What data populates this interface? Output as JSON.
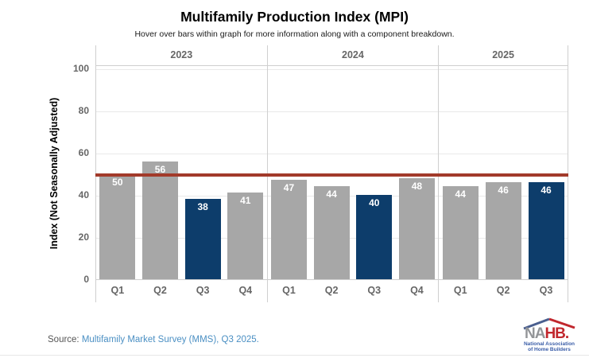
{
  "page": {
    "title": "Multifamily Production Index (MPI)",
    "subtitle": "Hover over bars within graph for more information along with a component breakdown."
  },
  "chart_data": {
    "type": "bar",
    "title": "Multifamily Production Index (MPI)",
    "subtitle": "Hover over bars within graph for more information along with a component breakdown.",
    "ylabel": "Index (Not Seasonally Adjusted)",
    "xlabel": "",
    "ylim": [
      0,
      100
    ],
    "yticks": [
      0,
      20,
      40,
      60,
      80,
      100
    ],
    "grid": true,
    "reference_line": {
      "value": 50,
      "color": "#a23a2a"
    },
    "groups": [
      {
        "year": "2023",
        "bars": [
          {
            "label": "Q1",
            "value": 50,
            "highlight": false
          },
          {
            "label": "Q2",
            "value": 56,
            "highlight": false
          },
          {
            "label": "Q3",
            "value": 38,
            "highlight": true
          },
          {
            "label": "Q4",
            "value": 41,
            "highlight": false
          }
        ]
      },
      {
        "year": "2024",
        "bars": [
          {
            "label": "Q1",
            "value": 47,
            "highlight": false
          },
          {
            "label": "Q2",
            "value": 44,
            "highlight": false
          },
          {
            "label": "Q3",
            "value": 40,
            "highlight": true
          },
          {
            "label": "Q4",
            "value": 48,
            "highlight": false
          }
        ]
      },
      {
        "year": "2025",
        "bars": [
          {
            "label": "Q1",
            "value": 44,
            "highlight": false
          },
          {
            "label": "Q2",
            "value": 46,
            "highlight": false
          },
          {
            "label": "Q3",
            "value": 46,
            "highlight": true
          }
        ]
      }
    ],
    "colors": {
      "bar": "#a7a7a7",
      "highlight_bar": "#0d3d6b",
      "value_label": "#ffffff",
      "axis_text": "#666666"
    }
  },
  "footer": {
    "source_prefix": "Source: ",
    "source_link": "Multifamily Market Survey (MMS), Q3 2025.",
    "link_color": "#4a8fc3"
  },
  "logo": {
    "text_gray": "NA",
    "text_red": "HB.",
    "line1": "National Association",
    "line2": "of Home Builders",
    "gray": "#939598",
    "red": "#c1272d",
    "blue": "#3a5da8",
    "roof_blue": "#4a5f8f"
  }
}
